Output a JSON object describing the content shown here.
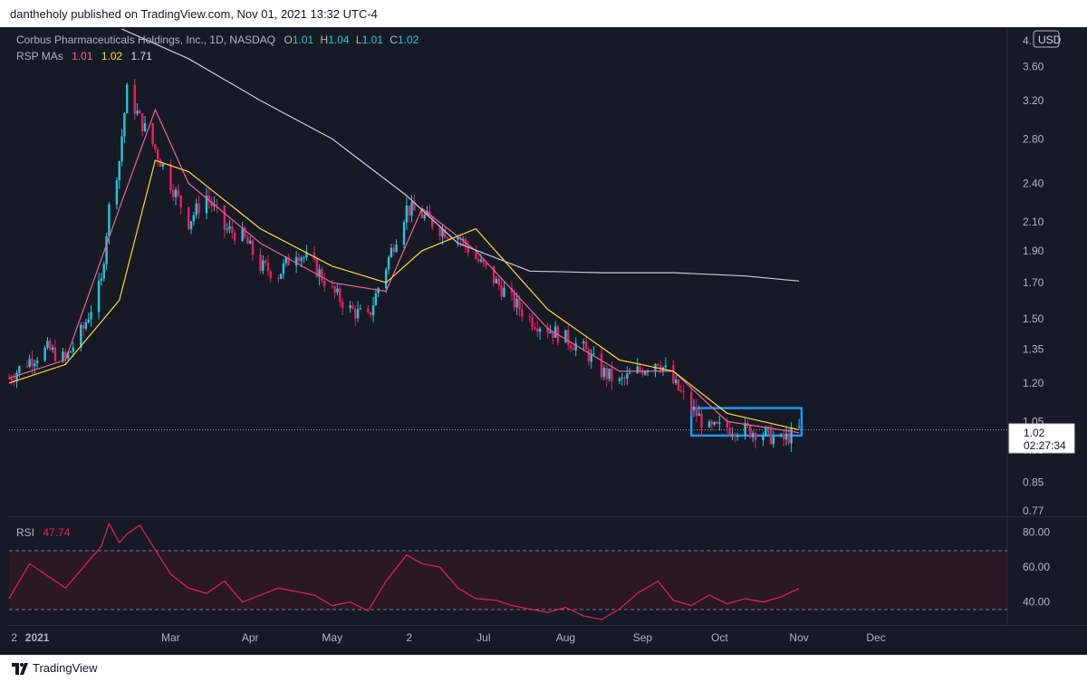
{
  "header": {
    "publisher_text": "dantheholy published on TradingView.com, Nov 01, 2021 13:32 UTC-4"
  },
  "footer": {
    "brand": "TradingView"
  },
  "legend": {
    "symbol": "Corbus Pharmaceuticals Holdings, Inc., 1D, NASDAQ",
    "o_label": "O",
    "o_value": "1.01",
    "h_label": "H",
    "h_value": "1.04",
    "l_label": "L",
    "l_value": "1.01",
    "c_label": "C",
    "c_value": "1.02",
    "ma_label": "RSP MAs",
    "ma1": "1.01",
    "ma2": "1.02",
    "ma3": "1.71",
    "rsi_label": "RSI",
    "rsi_value": "47.74"
  },
  "price_axis": {
    "currency": "USD",
    "top_tick": "4.",
    "ticks": [
      "3.60",
      "3.20",
      "2.80",
      "2.40",
      "2.10",
      "1.90",
      "1.70",
      "1.50",
      "1.35",
      "1.20",
      "1.05",
      "0.95",
      "0.85",
      "0.77"
    ],
    "last_price": "1.02",
    "countdown": "02:27:34"
  },
  "rsi_axis": {
    "ticks": [
      "80.00",
      "60.00",
      "40.00"
    ]
  },
  "time_axis": {
    "labels": [
      "2",
      "2021",
      "Mar",
      "Apr",
      "May",
      "2",
      "Jul",
      "Aug",
      "Sep",
      "Oct",
      "Nov",
      "Dec"
    ]
  },
  "colors": {
    "background": "#161a25",
    "up": "#26c6da",
    "down": "#e91e63",
    "ma_fast": "#f06292",
    "ma_mid": "#fdd835",
    "ma_slow": "#c5cae9",
    "rsi": "#e91e63",
    "box": "#2196f3",
    "axis_text": "#b2b5be",
    "legend_text": "#b2b5be"
  },
  "chart_data": [
    {
      "type": "candlestick",
      "title": "Corbus Pharmaceuticals Holdings, Inc., 1D, NASDAQ",
      "scale": "log",
      "ylim": [
        0.77,
        4.0
      ],
      "xlim": [
        "2020-12-28",
        "2021-12-31"
      ],
      "x_tick_labels": [
        "2",
        "2021",
        "Mar",
        "Apr",
        "May",
        "2",
        "Jul",
        "Aug",
        "Sep",
        "Oct",
        "Nov",
        "Dec"
      ],
      "close_series": {
        "x": [
          "2020-12-28",
          "2021-01-05",
          "2021-01-12",
          "2021-01-19",
          "2021-01-26",
          "2021-02-02",
          "2021-02-05",
          "2021-02-09",
          "2021-02-12",
          "2021-02-17",
          "2021-02-23",
          "2021-03-01",
          "2021-03-08",
          "2021-03-15",
          "2021-03-22",
          "2021-03-29",
          "2021-04-05",
          "2021-04-12",
          "2021-04-19",
          "2021-04-26",
          "2021-05-03",
          "2021-05-10",
          "2021-05-17",
          "2021-05-24",
          "2021-06-01",
          "2021-06-07",
          "2021-06-14",
          "2021-06-21",
          "2021-06-28",
          "2021-07-06",
          "2021-07-12",
          "2021-07-19",
          "2021-07-26",
          "2021-08-02",
          "2021-08-09",
          "2021-08-16",
          "2021-08-23",
          "2021-08-30",
          "2021-09-07",
          "2021-09-13",
          "2021-09-20",
          "2021-09-27",
          "2021-10-04",
          "2021-10-11",
          "2021-10-18",
          "2021-10-25",
          "2021-11-01"
        ],
        "values": [
          1.22,
          1.3,
          1.35,
          1.3,
          1.45,
          1.7,
          2.2,
          2.6,
          3.3,
          3.0,
          2.7,
          2.4,
          2.1,
          2.3,
          2.05,
          2.0,
          1.8,
          1.75,
          1.9,
          1.8,
          1.65,
          1.55,
          1.5,
          1.8,
          2.2,
          2.15,
          2.05,
          2.0,
          1.85,
          1.7,
          1.6,
          1.5,
          1.45,
          1.4,
          1.35,
          1.25,
          1.2,
          1.25,
          1.3,
          1.2,
          1.1,
          1.02,
          1.03,
          1.02,
          1.01,
          0.98,
          1.02
        ]
      },
      "moving_averages": [
        {
          "name": "RSP MAs",
          "last": 1.01,
          "x": [
            "2020-12-28",
            "2021-01-19",
            "2021-02-09",
            "2021-02-23",
            "2021-03-08",
            "2021-04-05",
            "2021-05-03",
            "2021-05-24",
            "2021-06-07",
            "2021-06-28",
            "2021-07-26",
            "2021-08-23",
            "2021-09-13",
            "2021-10-04",
            "2021-11-01"
          ],
          "values": [
            1.22,
            1.3,
            2.2,
            3.1,
            2.4,
            1.95,
            1.7,
            1.65,
            2.2,
            1.9,
            1.45,
            1.25,
            1.25,
            1.05,
            1.01
          ]
        },
        {
          "name": "",
          "last": 1.02,
          "x": [
            "2020-12-28",
            "2021-01-19",
            "2021-02-09",
            "2021-02-23",
            "2021-03-08",
            "2021-04-05",
            "2021-05-03",
            "2021-05-24",
            "2021-06-07",
            "2021-06-28",
            "2021-07-26",
            "2021-08-23",
            "2021-09-13",
            "2021-10-04",
            "2021-11-01"
          ],
          "values": [
            1.2,
            1.28,
            1.6,
            2.6,
            2.5,
            2.05,
            1.8,
            1.7,
            1.9,
            2.05,
            1.55,
            1.3,
            1.25,
            1.08,
            1.02
          ]
        },
        {
          "name": "",
          "last": 1.71,
          "x": [
            "2021-02-10",
            "2021-03-08",
            "2021-04-05",
            "2021-05-03",
            "2021-06-01",
            "2021-06-21",
            "2021-07-19",
            "2021-08-16",
            "2021-09-13",
            "2021-10-11",
            "2021-11-01"
          ],
          "values": [
            4.1,
            3.7,
            3.2,
            2.8,
            2.3,
            1.95,
            1.77,
            1.76,
            1.76,
            1.74,
            1.71
          ]
        }
      ],
      "annotations": [
        {
          "type": "rectangle",
          "x": [
            "2021-09-20",
            "2021-11-02"
          ],
          "y": [
            1.0,
            1.1
          ]
        }
      ],
      "last_price": 1.02
    },
    {
      "type": "line",
      "title": "RSI",
      "ylim": [
        30,
        85
      ],
      "bands": [
        30,
        70
      ],
      "x": [
        "2020-12-28",
        "2021-01-05",
        "2021-01-12",
        "2021-01-19",
        "2021-01-26",
        "2021-02-02",
        "2021-02-05",
        "2021-02-09",
        "2021-02-12",
        "2021-02-17",
        "2021-02-23",
        "2021-03-01",
        "2021-03-08",
        "2021-03-15",
        "2021-03-22",
        "2021-03-29",
        "2021-04-05",
        "2021-04-12",
        "2021-04-19",
        "2021-04-26",
        "2021-05-03",
        "2021-05-10",
        "2021-05-17",
        "2021-05-24",
        "2021-06-01",
        "2021-06-07",
        "2021-06-14",
        "2021-06-21",
        "2021-06-28",
        "2021-07-06",
        "2021-07-12",
        "2021-07-19",
        "2021-07-26",
        "2021-08-02",
        "2021-08-09",
        "2021-08-16",
        "2021-08-23",
        "2021-08-30",
        "2021-09-07",
        "2021-09-13",
        "2021-09-20",
        "2021-09-27",
        "2021-10-04",
        "2021-10-11",
        "2021-10-18",
        "2021-10-25",
        "2021-11-01"
      ],
      "values": [
        42,
        62,
        55,
        48,
        60,
        72,
        85,
        74,
        79,
        84,
        70,
        56,
        48,
        45,
        52,
        40,
        44,
        48,
        46,
        44,
        38,
        40,
        35,
        52,
        67,
        62,
        60,
        48,
        42,
        41,
        38,
        36,
        34,
        37,
        32,
        30,
        36,
        45,
        52,
        41,
        38,
        44,
        39,
        42,
        40,
        43,
        47.74
      ],
      "last": 47.74
    }
  ]
}
